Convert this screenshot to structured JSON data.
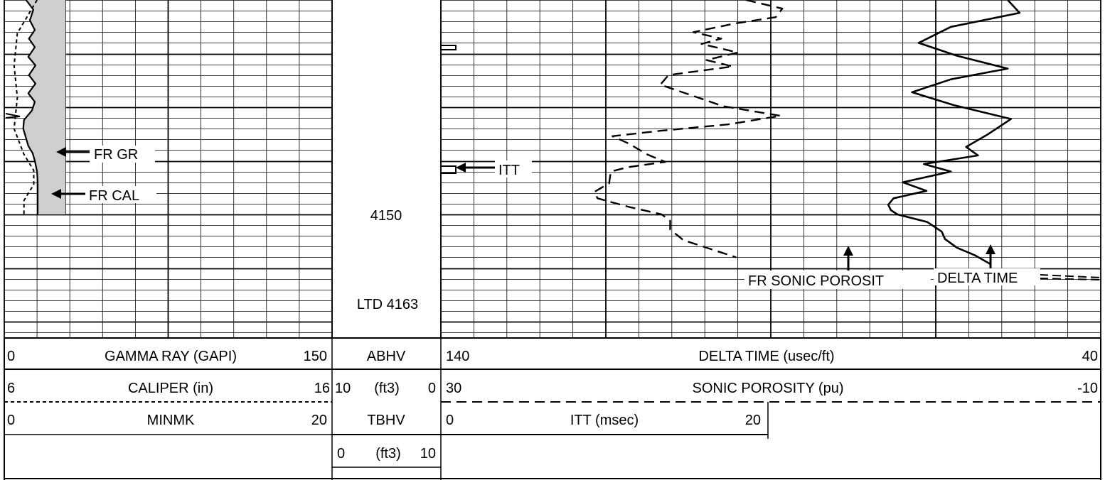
{
  "chart_data": {
    "type": "line",
    "depth_labels": [
      "4150",
      "LTD 4163"
    ],
    "annotations": {
      "fr_gr": "FR GR",
      "fr_cal": "FR CAL",
      "itt": "ITT",
      "fr_sonic_porosity": "FR SONIC POROSIT",
      "delta_time": "DELTA TIME"
    },
    "headers": {
      "gamma_ray": {
        "min": "0",
        "title": "GAMMA RAY (GAPI)",
        "max": "150"
      },
      "caliper": {
        "min": "6",
        "title": "CALIPER (in)",
        "max": "16"
      },
      "minmk": {
        "min": "0",
        "title": "MINMK",
        "max": "20"
      },
      "abhv": {
        "title": "ABHV",
        "left": "10",
        "unit": "(ft3)",
        "right": "0"
      },
      "tbhv": {
        "title": "TBHV",
        "left": "0",
        "unit": "(ft3)",
        "right": "10"
      },
      "delta_time": {
        "min": "140",
        "title": "DELTA TIME (usec/ft)",
        "max": "40"
      },
      "sonic_porosity": {
        "min": "30",
        "title": "SONIC POROSITY (pu)",
        "max": "-10"
      },
      "itt": {
        "min": "0",
        "title": "ITT (msec)",
        "max": "20"
      }
    },
    "series": [
      {
        "name": "GAMMA RAY",
        "units": "GAPI",
        "range": [
          0,
          150
        ],
        "depth_values": [
          4130.0,
          4130.9,
          4131.9,
          4132.8,
          4133.6,
          4134.4,
          4135.3,
          4136.1,
          4137.0,
          4137.8,
          4138.7,
          4139.5,
          4140.3,
          4141.2,
          4142.0,
          4142.9,
          4143.6,
          4144.3,
          4145.0,
          4146.0,
          4147.0,
          4148.0,
          4149.0,
          4150.0
        ],
        "values": [
          10.0,
          13.3,
          11.7,
          14.0,
          11.3,
          14.0,
          11.0,
          14.3,
          11.3,
          14.3,
          11.0,
          14.0,
          12.7,
          9.0,
          8.7,
          10.0,
          11.0,
          13.0,
          14.0,
          15.0,
          15.3,
          15.3,
          15.3,
          15.3
        ]
      },
      {
        "name": "CALIPER",
        "units": "in",
        "range": [
          6,
          16
        ],
        "depth_values": [
          4130.0,
          4133.1,
          4136.1,
          4139.1,
          4142.0,
          4144.4,
          4145.9,
          4147.2,
          4148.7,
          4150.0
        ],
        "values": [
          7.0,
          6.4,
          6.3,
          6.4,
          6.3,
          6.6,
          6.9,
          6.9,
          6.6,
          6.6
        ]
      },
      {
        "name": "DELTA TIME",
        "units": "usec/ft",
        "range": [
          140,
          40
        ],
        "depth_values": [
          4130.0,
          4131.2,
          4132.5,
          4134.0,
          4135.2,
          4136.4,
          4137.4,
          4138.6,
          4139.8,
          4141.1,
          4142.6,
          4143.7,
          4144.5,
          4145.3,
          4146.0,
          4147.0,
          4147.8,
          4148.5,
          4149.1,
          4149.6,
          4150.0,
          4150.7,
          4151.6,
          4152.3,
          4153.1,
          4153.8,
          4154.6
        ],
        "values": [
          54.1,
          52.3,
          62.7,
          67.6,
          61.8,
          54.1,
          62.7,
          68.6,
          62.3,
          53.6,
          57.3,
          60.4,
          58.6,
          66.8,
          62.7,
          70.0,
          66.4,
          71.4,
          72.2,
          71.8,
          70.8,
          66.3,
          64.1,
          63.6,
          61.8,
          59.1,
          56.8
        ]
      },
      {
        "name": "SONIC POROSITY",
        "units": "pu",
        "range": [
          30,
          -10
        ],
        "depth_values": [
          4130.0,
          4130.8,
          4131.6,
          4132.2,
          4133.0,
          4133.6,
          4134.1,
          4134.9,
          4135.6,
          4136.2,
          4137.0,
          4137.9,
          4139.0,
          4139.9,
          4140.8,
          4141.6,
          4142.2,
          4142.7,
          4143.4,
          4144.4,
          4145.1,
          4145.6,
          4146.0,
          4147.1,
          4147.9,
          4148.5,
          4149.3,
          4150.0,
          4150.6,
          4151.4,
          4152.4,
          4153.3,
          4154.0
        ],
        "values": [
          11.5,
          9.3,
          9.7,
          12.2,
          14.7,
          13.0,
          14.2,
          12.0,
          13.9,
          12.3,
          16.2,
          16.7,
          14.6,
          12.9,
          9.4,
          12.6,
          16.7,
          19.6,
          18.6,
          17.5,
          16.4,
          18.7,
          19.7,
          19.8,
          20.7,
          20.5,
          18.6,
          16.6,
          16.1,
          16.1,
          15.3,
          13.5,
          12.1
        ]
      }
    ],
    "depth_range": [
      4130,
      4155
    ],
    "grid": true
  }
}
